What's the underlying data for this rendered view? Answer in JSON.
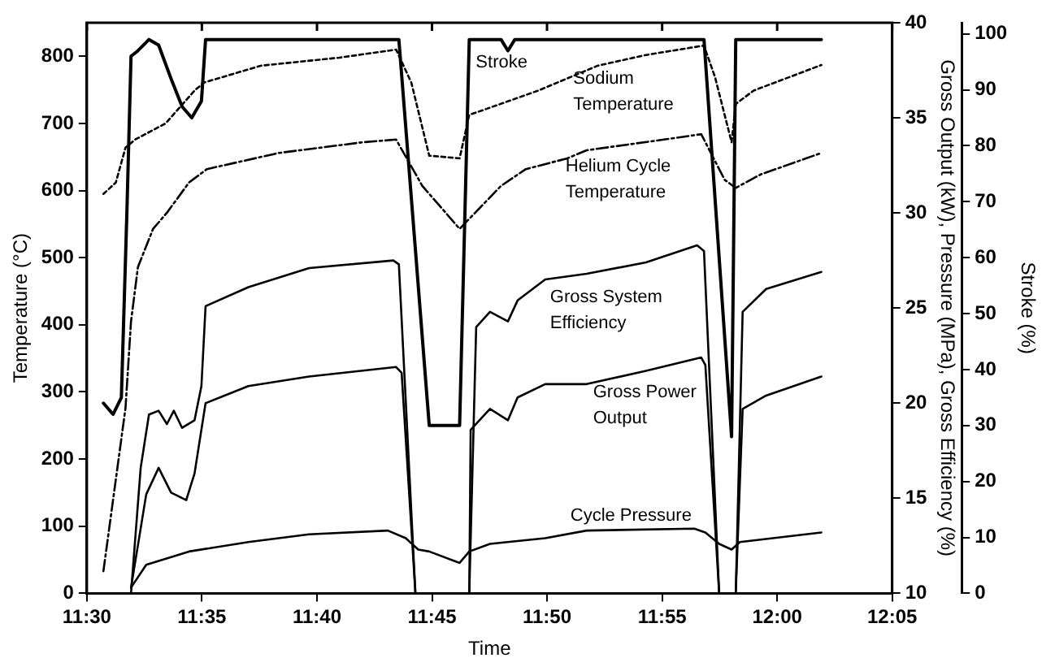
{
  "chart_data": {
    "type": "line",
    "xlabel": "Time",
    "ylabel": "Temperature (°C)",
    "y2label": "Gross Output (kW), Pressure (MPa), Gross Efficiency (%)",
    "y3label": "Stroke (%)",
    "marker": "none",
    "xlim": [
      11.5,
      12.0833
    ],
    "xticks": [
      {
        "value": 11.5,
        "label": "11:30"
      },
      {
        "value": 11.5833,
        "label": "11:35"
      },
      {
        "value": 11.6667,
        "label": "11:40"
      },
      {
        "value": 11.75,
        "label": "11:45"
      },
      {
        "value": 11.8333,
        "label": "11:50"
      },
      {
        "value": 11.9167,
        "label": "11:55"
      },
      {
        "value": 12.0,
        "label": "12:00"
      },
      {
        "value": 12.0833,
        "label": "12:05"
      }
    ],
    "ylim": [
      0,
      850
    ],
    "yticks": [
      0,
      100,
      200,
      300,
      400,
      500,
      600,
      700,
      800
    ],
    "y2lim": [
      10,
      40
    ],
    "y2ticks": [
      10,
      15,
      20,
      25,
      30,
      35,
      40
    ],
    "y3lim": [
      0,
      102
    ],
    "y3ticks": [
      0,
      10,
      20,
      30,
      40,
      50,
      60,
      70,
      80,
      90,
      100
    ],
    "series": [
      {
        "name": "Stroke",
        "color": "#000000",
        "axis": "y3",
        "line_style": "solid",
        "x": [
          11.512,
          11.519,
          11.525,
          11.529,
          11.532,
          11.537,
          11.545,
          11.552,
          11.561,
          11.569,
          11.576,
          11.583,
          11.586,
          11.726,
          11.748,
          11.77,
          11.777,
          11.8,
          11.805,
          11.81,
          11.947,
          11.967,
          11.97,
          12.032
        ],
        "values": [
          34,
          32,
          35,
          68,
          96,
          97,
          99,
          98,
          92,
          87,
          85,
          88,
          99,
          99,
          30,
          30,
          99,
          99,
          97,
          99,
          99,
          28,
          99,
          99
        ]
      },
      {
        "name": "Sodium Temperature",
        "color": "#000000",
        "axis": "y",
        "line_style": "dotted",
        "x": [
          11.512,
          11.521,
          11.528,
          11.535,
          11.557,
          11.578,
          11.585,
          11.626,
          11.683,
          11.724,
          11.735,
          11.748,
          11.77,
          11.777,
          11.783,
          11.827,
          11.87,
          11.905,
          11.947,
          11.955,
          11.967,
          11.97,
          11.983,
          12.032
        ],
        "values": [
          595,
          612,
          664,
          676,
          700,
          749,
          761,
          786,
          798,
          810,
          761,
          652,
          648,
          713,
          717,
          749,
          786,
          802,
          816,
          769,
          672,
          729,
          749,
          787
        ]
      },
      {
        "name": "Helium Cycle Temperature",
        "color": "#000000",
        "axis": "y",
        "line_style": "dashed",
        "x": [
          11.512,
          11.528,
          11.532,
          11.537,
          11.548,
          11.558,
          11.574,
          11.587,
          11.639,
          11.7,
          11.724,
          11.743,
          11.77,
          11.8,
          11.818,
          11.848,
          11.862,
          11.918,
          11.945,
          11.962,
          11.97,
          11.988,
          12.032
        ],
        "values": [
          33,
          276,
          405,
          486,
          543,
          567,
          612,
          632,
          656,
          672,
          676,
          607,
          543,
          607,
          632,
          648,
          660,
          676,
          684,
          616,
          604,
          624,
          656
        ]
      },
      {
        "name": "Gross System Efficiency",
        "color": "#000000",
        "axis": "y2",
        "line_style": "solid",
        "x": [
          11.532,
          11.539,
          11.545,
          11.552,
          11.558,
          11.563,
          11.569,
          11.578,
          11.583,
          11.586,
          11.617,
          11.661,
          11.722,
          11.726,
          11.738,
          11.758,
          11.777,
          11.782,
          11.792,
          11.805,
          11.812,
          11.832,
          11.862,
          11.905,
          11.942,
          11.947,
          11.958,
          11.963,
          11.97,
          11.975,
          11.992,
          12.032
        ],
        "values": [
          10,
          16.6,
          19.4,
          19.6,
          18.9,
          19.6,
          18.7,
          19.1,
          20.9,
          25.1,
          26.1,
          27.1,
          27.5,
          27.3,
          10,
          null,
          10,
          24.0,
          24.8,
          24.3,
          25.4,
          26.5,
          26.8,
          27.4,
          28.3,
          28.0,
          10,
          null,
          10,
          24.8,
          26.0,
          26.9
        ]
      },
      {
        "name": "Gross Power Output",
        "color": "#000000",
        "axis": "y2",
        "line_style": "solid",
        "x": [
          11.532,
          11.543,
          11.552,
          11.561,
          11.572,
          11.578,
          11.586,
          11.617,
          11.661,
          11.724,
          11.728,
          11.738,
          11.758,
          11.777,
          11.778,
          11.792,
          11.805,
          11.812,
          11.832,
          11.862,
          11.905,
          11.945,
          11.948,
          11.958,
          11.963,
          11.97,
          11.975,
          11.992,
          12.032
        ],
        "values": [
          10.3,
          15.2,
          16.6,
          15.3,
          14.9,
          16.3,
          20.0,
          20.9,
          21.4,
          21.9,
          21.6,
          10,
          null,
          10,
          18.6,
          19.7,
          19.1,
          20.3,
          21.0,
          21.0,
          21.7,
          22.4,
          22.0,
          10,
          null,
          10,
          19.7,
          20.4,
          21.4
        ]
      },
      {
        "name": "Cycle Pressure",
        "color": "#000000",
        "axis": "y2",
        "line_style": "solid",
        "x": [
          11.532,
          11.543,
          11.574,
          11.617,
          11.661,
          11.718,
          11.731,
          11.74,
          11.748,
          11.77,
          11.777,
          11.792,
          11.832,
          11.862,
          11.94,
          11.948,
          11.958,
          11.967,
          11.973,
          12.032
        ],
        "values": [
          10.3,
          11.5,
          12.2,
          12.7,
          13.1,
          13.3,
          12.9,
          12.3,
          12.2,
          11.6,
          12.2,
          12.6,
          12.9,
          13.3,
          13.4,
          13.2,
          12.6,
          12.3,
          12.7,
          13.2
        ]
      }
    ]
  }
}
